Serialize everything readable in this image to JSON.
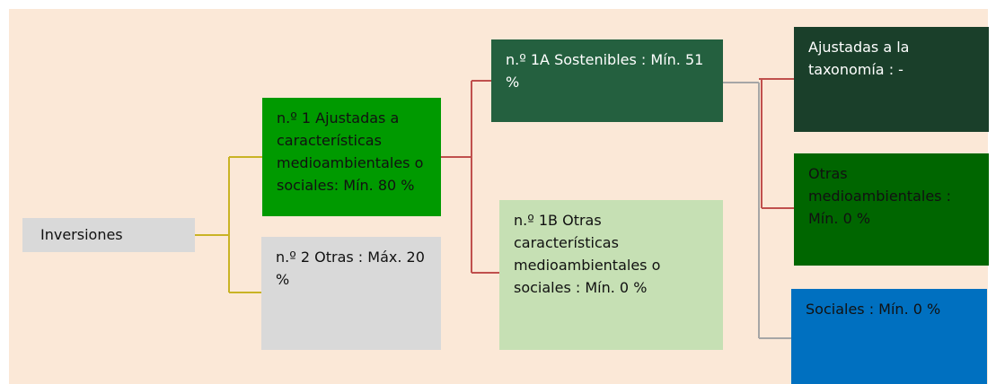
{
  "nodes": [
    {
      "label": "Inversiones"
    },
    {
      "label": "n.º 1 Ajustadas a características medioambientales o sociales: Mín. 80 %"
    },
    {
      "label": "n.º 2 Otras : Máx. 20 %"
    },
    {
      "label": "n.º 1A Sostenibles : Mín. 51 %"
    },
    {
      "label": "n.º 1B Otras características medioambientales o sociales : Mín. 0 %"
    },
    {
      "label": "Ajustadas a la taxonomía : -"
    },
    {
      "label": "Otras medioambientales : Mín. 0 %"
    },
    {
      "label": "Sociales : Mín. 0 %"
    }
  ]
}
